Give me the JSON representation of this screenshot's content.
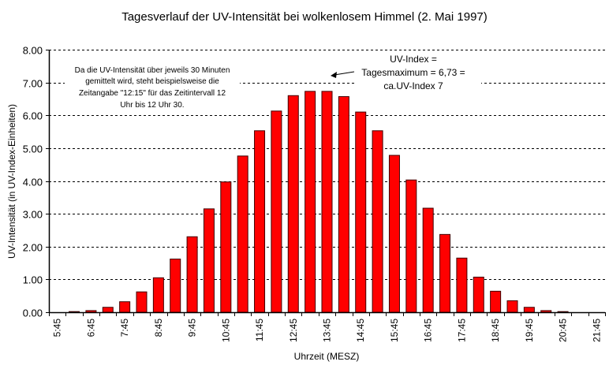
{
  "chart_data": {
    "type": "bar",
    "title": "Tagesverlauf der UV-Intensität bei wolkenlosem Himmel (2. Mai 1997)",
    "xlabel": "Uhrzeit (MESZ)",
    "ylabel": "UV-Intensität (in UV-Index-Einheiten)",
    "ylim": [
      0,
      8
    ],
    "yticks": [
      "0.00",
      "1.00",
      "2.00",
      "3.00",
      "4.00",
      "5.00",
      "6.00",
      "7.00",
      "8.00"
    ],
    "grid": "horizontal dashed",
    "bar_color": "#ff0000",
    "bar_edge_color": "#400000",
    "categories": [
      "5:45",
      "6:15",
      "6:45",
      "7:15",
      "7:45",
      "8:15",
      "8:45",
      "9:15",
      "9:45",
      "10:15",
      "10:45",
      "11:15",
      "11:45",
      "12:15",
      "12:45",
      "13:15",
      "13:45",
      "14:15",
      "14:45",
      "15:15",
      "15:45",
      "16:15",
      "16:45",
      "17:15",
      "17:45",
      "18:15",
      "18:45",
      "19:15",
      "19:45",
      "20:15",
      "20:45",
      "21:15",
      "21:45"
    ],
    "tick_labels": [
      "5:45",
      "6:45",
      "7:45",
      "8:45",
      "9:45",
      "10:45",
      "11:45",
      "12:45",
      "13:45",
      "14:45",
      "15:45",
      "16:45",
      "17:45",
      "18:45",
      "19:45",
      "20:45",
      "21:45"
    ],
    "values": [
      0,
      0.02,
      0.05,
      0.15,
      0.32,
      0.62,
      1.05,
      1.62,
      2.3,
      3.15,
      3.97,
      4.76,
      5.53,
      6.13,
      6.6,
      6.73,
      6.73,
      6.57,
      6.1,
      5.53,
      4.78,
      4.03,
      3.17,
      2.37,
      1.65,
      1.07,
      0.64,
      0.35,
      0.15,
      0.05,
      0.02,
      0,
      0
    ],
    "annotations": {
      "note": [
        "Da die UV-Intensität über jeweils 30 Minuten",
        "gemittelt wird, steht beispielsweise die",
        "Zeitangabe \"12:15\" für das Zeitintervall 12",
        "Uhr bis 12 Uhr 30."
      ],
      "maximum": [
        "UV-Index =",
        "Tagesmaximum = 6,73 =",
        "ca.UV-Index 7"
      ]
    }
  }
}
